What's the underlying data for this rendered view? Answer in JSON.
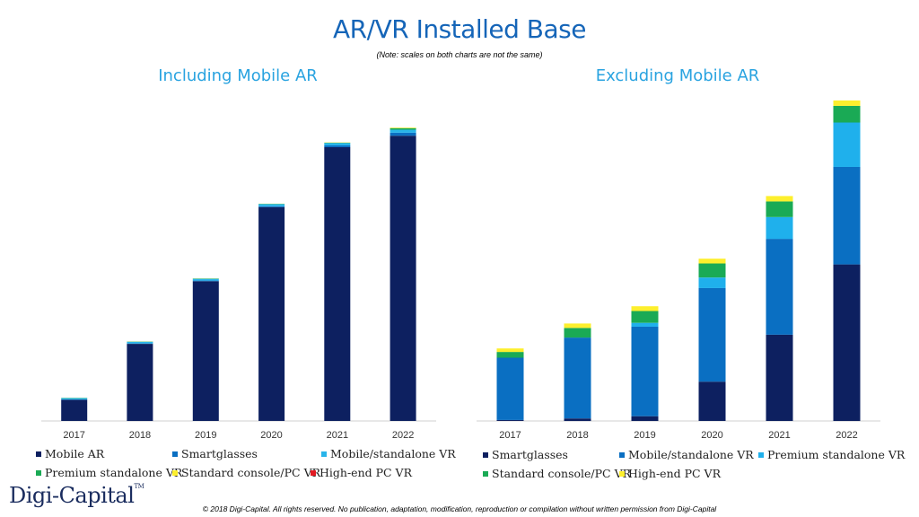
{
  "title": "AR/VR Installed Base",
  "note": "(Note: scales on both charts are not the same)",
  "logo": {
    "text": "Digi-Capital",
    "tm": "TM"
  },
  "footer": "© 2018 Digi-Capital. All rights reserved. No publication, adaptation, modification, reproduction or compilation without written permission from Digi-Capital",
  "colors": {
    "mobile_ar": "#0d2060",
    "smartglasses_left": "#0a6fc2",
    "mobile_vr_left": "#29b4ea",
    "premium": "#1aaa55",
    "console_pc": "#fdef2d",
    "highend": "#e31b23",
    "smartglasses_right": "#0d2060",
    "mobile_vr_right": "#0a6fc2",
    "premium_right": "#1fb0ec"
  },
  "chart_data": [
    {
      "type": "bar",
      "stacked": true,
      "title": "Including Mobile AR",
      "categories": [
        "2017",
        "2018",
        "2019",
        "2020",
        "2021",
        "2022"
      ],
      "ylim": [
        0,
        100
      ],
      "series": [
        {
          "name": "Mobile AR",
          "color": "#0d2060",
          "values": [
            7.0,
            25.5,
            46.2,
            70.7,
            90.5,
            94.3
          ]
        },
        {
          "name": "Smartglasses",
          "color": "#0a6fc2",
          "values": [
            0.1,
            0.1,
            0.2,
            0.3,
            0.6,
            1.0
          ]
        },
        {
          "name": "Mobile/standalone VR",
          "color": "#29b4ea",
          "values": [
            0.5,
            0.6,
            0.6,
            0.7,
            0.8,
            1.0
          ]
        },
        {
          "name": "Premium standalone VR",
          "color": "#1aaa55",
          "values": [
            0.05,
            0.05,
            0.1,
            0.1,
            0.1,
            0.5
          ]
        },
        {
          "name": "Standard console/PC VR",
          "color": "#fdef2d",
          "values": [
            0.05,
            0.05,
            0.05,
            0.05,
            0.1,
            0.2
          ]
        },
        {
          "name": "High-end PC VR",
          "color": "#e31b23",
          "values": [
            0,
            0,
            0,
            0,
            0,
            0
          ]
        }
      ],
      "legend_position": "bottom"
    },
    {
      "type": "bar",
      "stacked": true,
      "title": "Excluding Mobile AR",
      "categories": [
        "2017",
        "2018",
        "2019",
        "2020",
        "2021",
        "2022"
      ],
      "ylim": [
        0,
        100
      ],
      "series": [
        {
          "name": "Smartglasses",
          "color": "#0d2060",
          "values": [
            0.3,
            0.8,
            1.5,
            12.3,
            27.0,
            49.0
          ]
        },
        {
          "name": "Mobile/standalone VR",
          "color": "#0a6fc2",
          "values": [
            19.5,
            25.3,
            28.0,
            29.3,
            30.0,
            30.5
          ]
        },
        {
          "name": "Premium standalone VR",
          "color": "#1fb0ec",
          "values": [
            0,
            0,
            1.2,
            3.3,
            6.8,
            13.9
          ]
        },
        {
          "name": "Standard console/PC VR",
          "color": "#1aaa55",
          "values": [
            1.8,
            3.0,
            3.7,
            4.4,
            4.9,
            5.2
          ]
        },
        {
          "name": "High-end PC VR",
          "color": "#fdef2d",
          "values": [
            1.1,
            1.4,
            1.5,
            1.5,
            1.7,
            1.7
          ]
        }
      ],
      "legend_position": "bottom"
    }
  ]
}
